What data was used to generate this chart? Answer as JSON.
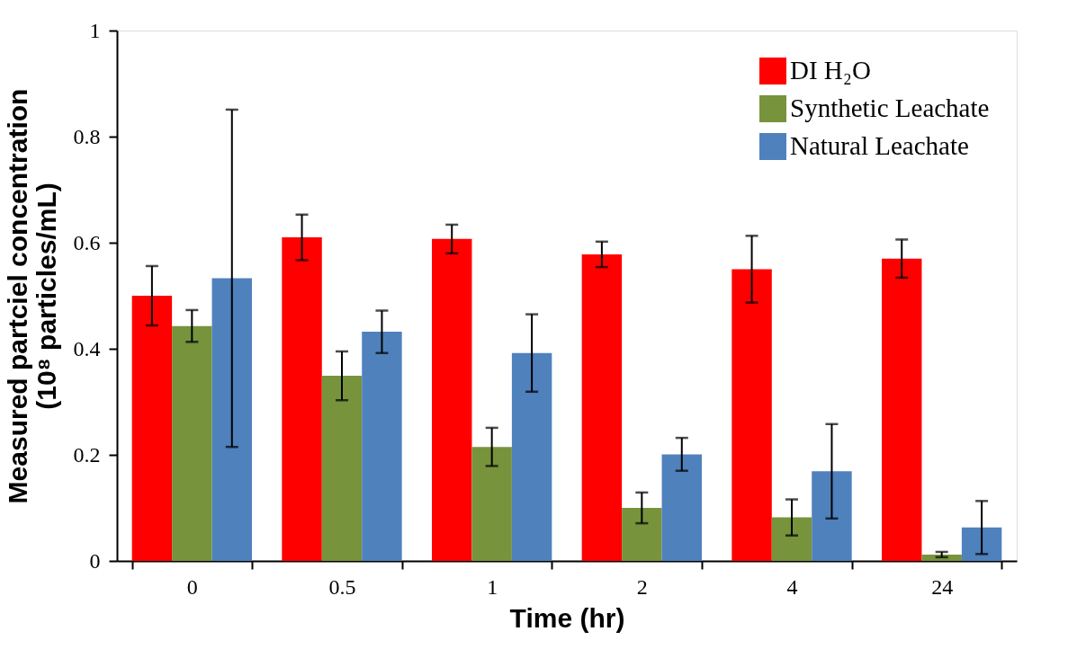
{
  "chart_data": {
    "type": "bar",
    "xlabel": "Time (hr)",
    "ylabel": "Measured partciel concentration\n(10⁸ particles/mL)",
    "categories": [
      "0",
      "0.5",
      "1",
      "2",
      "4",
      "24"
    ],
    "series": [
      {
        "name": "DI H₂O",
        "color": "#ff0000",
        "values": [
          0.5,
          0.61,
          0.607,
          0.578,
          0.55,
          0.57
        ],
        "errors": [
          0.056,
          0.043,
          0.027,
          0.024,
          0.063,
          0.036
        ]
      },
      {
        "name": "Synthetic Leachate",
        "color": "#77933c",
        "values": [
          0.443,
          0.349,
          0.215,
          0.1,
          0.082,
          0.012
        ],
        "errors": [
          0.03,
          0.046,
          0.036,
          0.029,
          0.034,
          0.005
        ]
      },
      {
        "name": "Natural Leachate",
        "color": "#4f81bd",
        "values": [
          0.533,
          0.432,
          0.392,
          0.201,
          0.169,
          0.063
        ],
        "errors": [
          0.318,
          0.04,
          0.073,
          0.031,
          0.089,
          0.05
        ]
      }
    ],
    "ylim": [
      0,
      1
    ],
    "yticks": [
      0,
      0.2,
      0.4,
      0.6,
      0.8,
      1
    ],
    "grid": false,
    "legend": "top right"
  }
}
